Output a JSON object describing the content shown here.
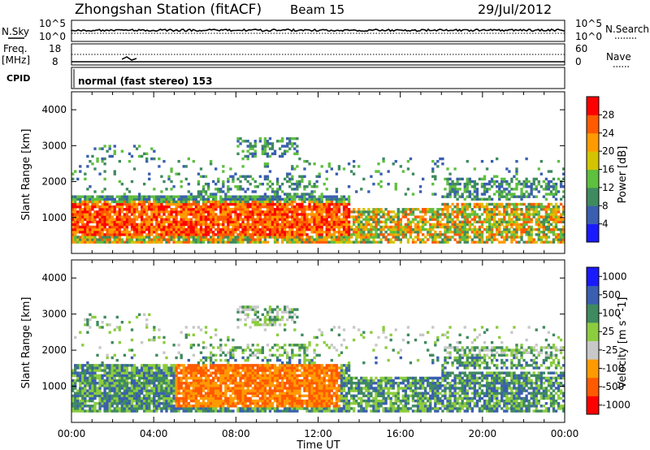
{
  "header": {
    "station": "Zhongshan Station (fitACF)",
    "beam": "Beam 15",
    "date": "29/Jul/2012"
  },
  "params": {
    "nsky_label": "N.Sky",
    "nsky_top": "10^5",
    "nsky_bottom": "10^0",
    "nsearch_label": "N.Search",
    "nsearch_top": "10^5",
    "nsearch_bottom": "10^0",
    "freq_label_1": "Freq.",
    "freq_label_2": "[MHz]",
    "freq_top": "18",
    "freq_bottom": "8",
    "nave_label": "Nave",
    "nave_top": "60",
    "nave_bottom": "0",
    "cpid_label": "CPID",
    "cpid_value": "normal (fast stereo) 153"
  },
  "colors": {
    "power": [
      "#1a1aff",
      "#3a5fb0",
      "#3f8a5f",
      "#5fbf3f",
      "#d4c400",
      "#ff9a00",
      "#ff5a00",
      "#ff0000"
    ],
    "velocity": [
      "#ff0000",
      "#ff5a00",
      "#ff9a00",
      "#c8c8c8",
      "#8ccc3f",
      "#3f8a5f",
      "#3a5fb0",
      "#1a1aff"
    ]
  },
  "chart_data": [
    {
      "type": "heatmap",
      "name": "power",
      "ylabel": "Slant Range [km]",
      "xlabel": "",
      "ylim": [
        0,
        4500
      ],
      "xlim": [
        0,
        24
      ],
      "yticks": [
        1000,
        2000,
        3000,
        4000
      ],
      "ytick_labels": [
        "1000",
        "2000",
        "3000",
        "4000"
      ],
      "colorbar_label": "Power [dB]",
      "colorbar_ticks": [
        "4",
        "8",
        "12",
        "16",
        "20",
        "24",
        "28"
      ],
      "colorbar_range": [
        0,
        32
      ]
    },
    {
      "type": "heatmap",
      "name": "velocity",
      "ylabel": "Slant Range [km]",
      "xlabel": "Time UT",
      "ylim": [
        0,
        4500
      ],
      "xlim": [
        0,
        24
      ],
      "yticks": [
        1000,
        2000,
        3000,
        4000
      ],
      "ytick_labels": [
        "1000",
        "2000",
        "3000",
        "4000"
      ],
      "xtick_labels": [
        "00:00",
        "04:00",
        "08:00",
        "12:00",
        "16:00",
        "20:00",
        "00:00"
      ],
      "colorbar_label": "Velocity [m s^-1]",
      "colorbar_ticks": [
        "-1000",
        "-500",
        "-100",
        "-25",
        "25",
        "100",
        "500",
        "1000"
      ]
    }
  ]
}
